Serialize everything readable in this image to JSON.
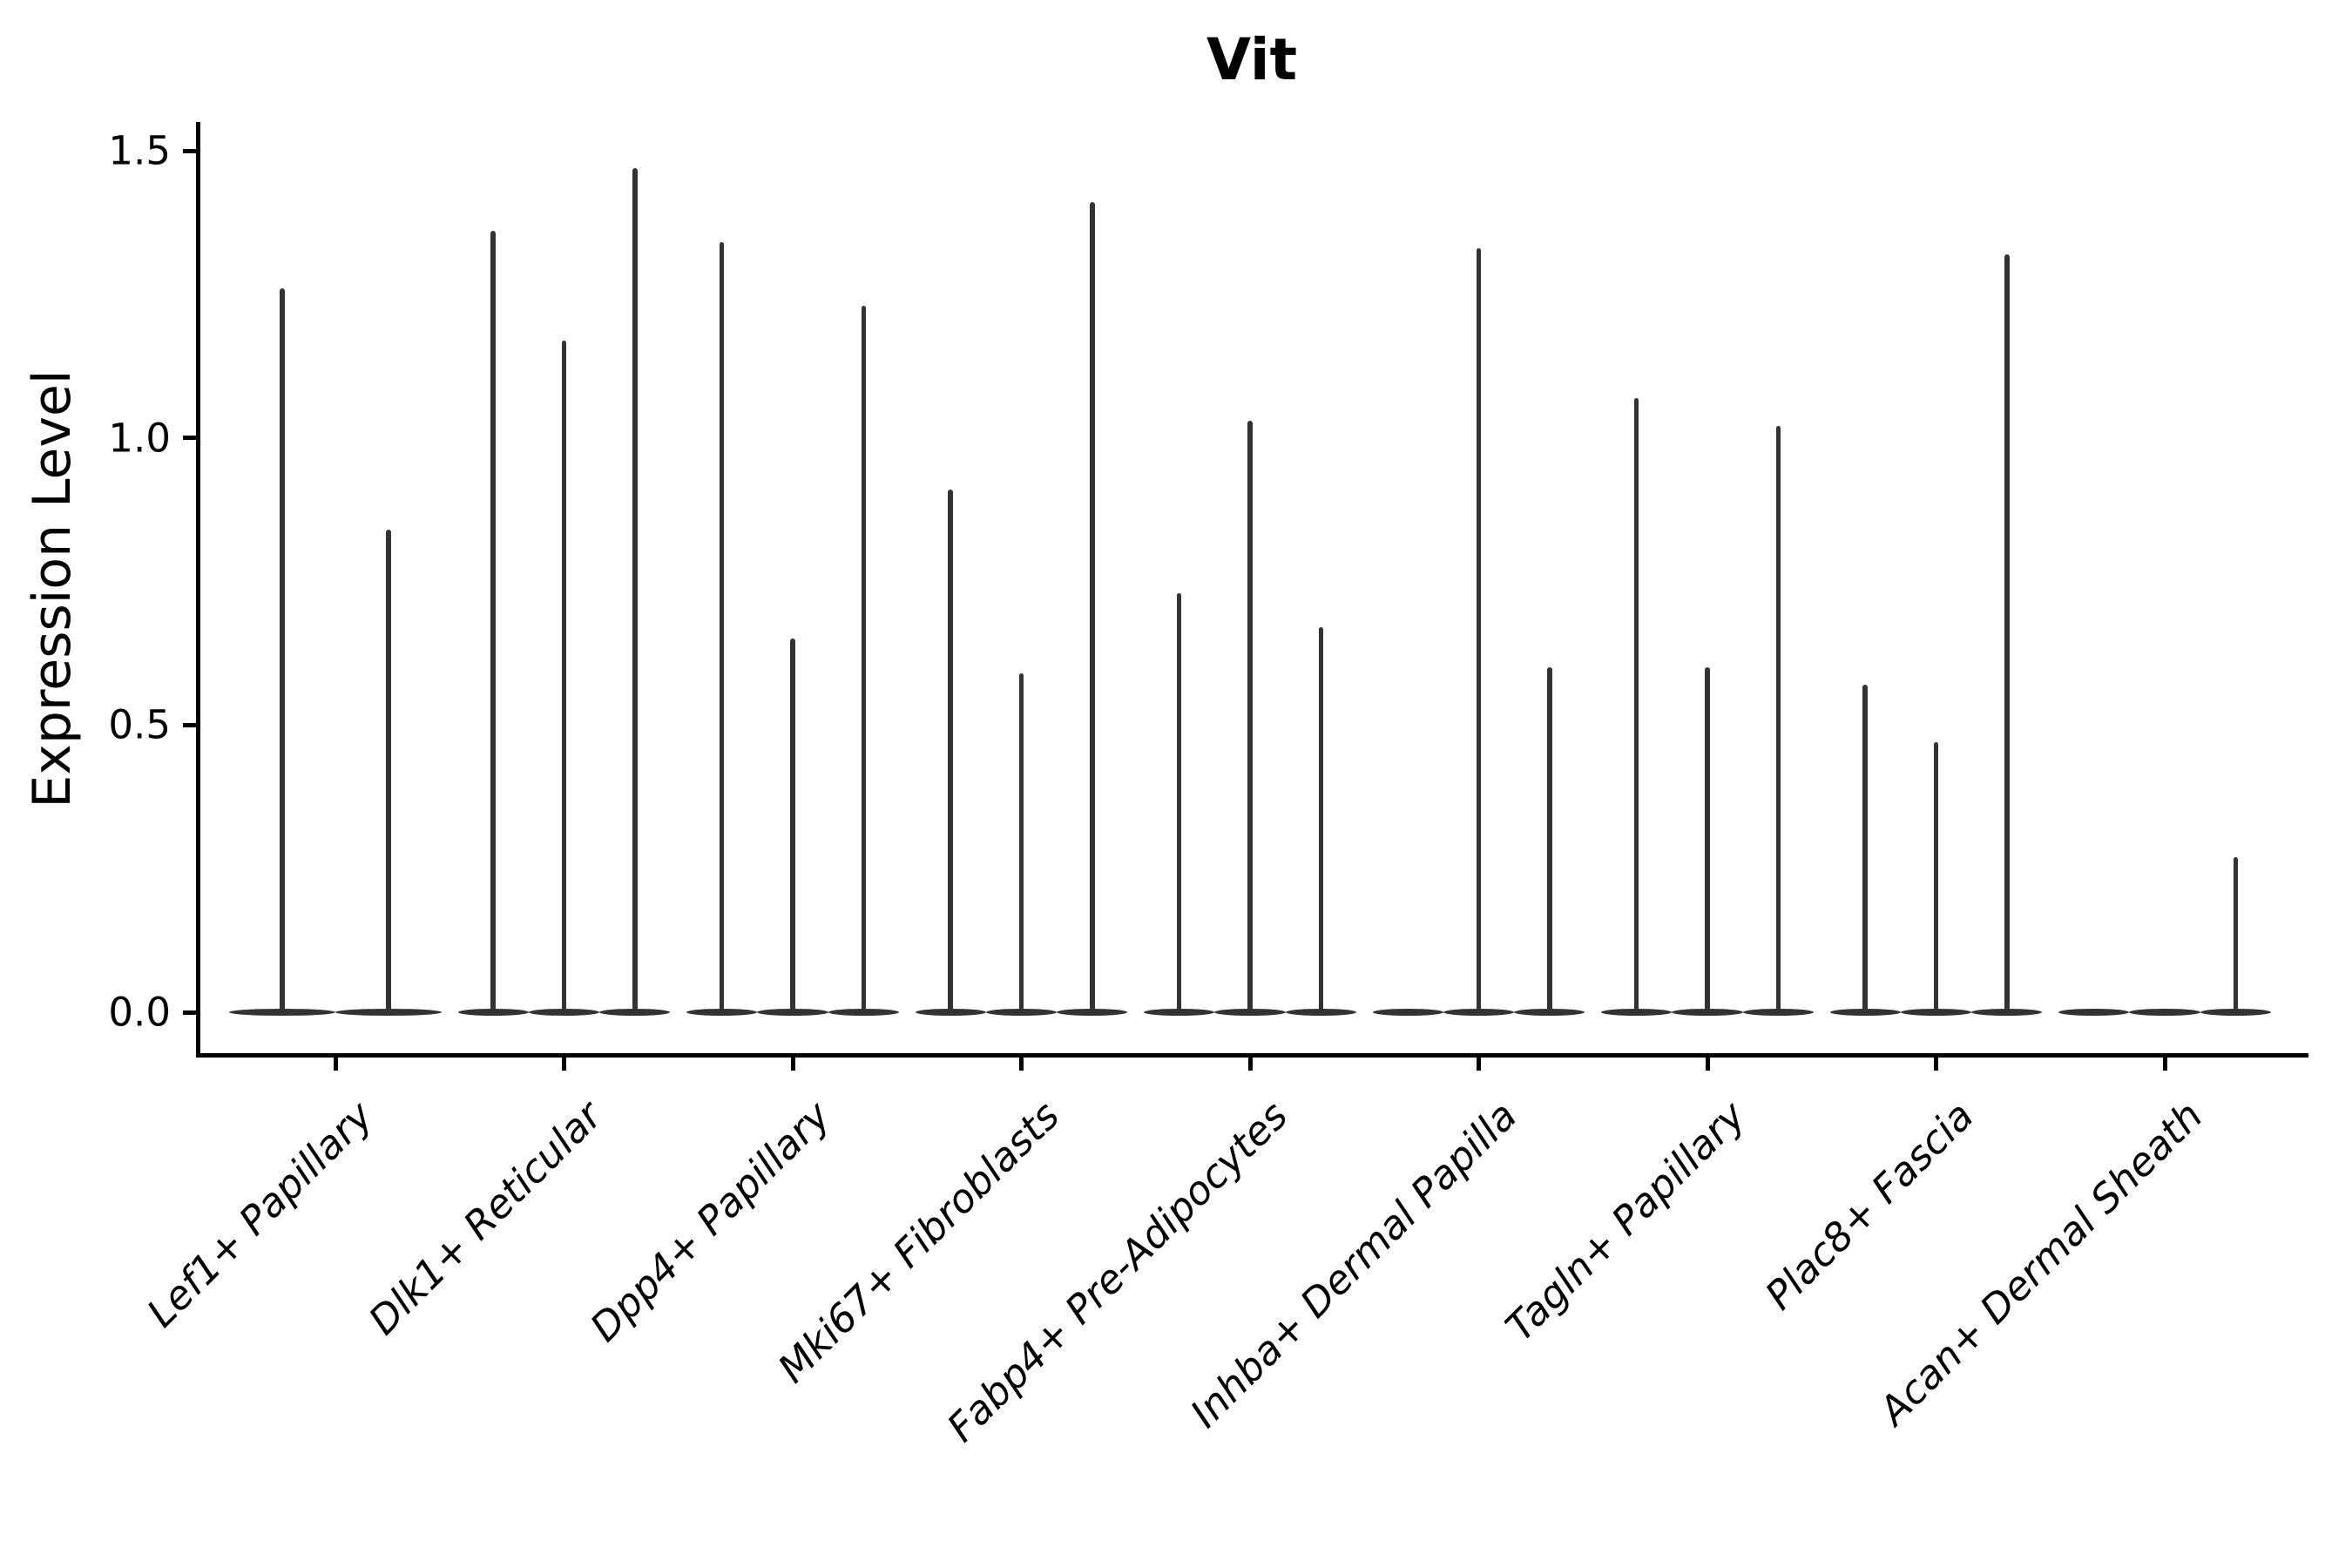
{
  "chart_data": {
    "type": "violin",
    "title": "Vit",
    "ylabel": "Expression Level",
    "xlabel": "",
    "ylim": [
      0,
      1.5
    ],
    "yticks": [
      0.0,
      0.5,
      1.0,
      1.5
    ],
    "ytick_labels": [
      "0.0",
      "0.5",
      "1.0",
      "1.5"
    ],
    "grid": false,
    "legend": "none",
    "categories": [
      "Lef1+ Papillary",
      "Dlk1+ Reticular",
      "Dpp4+ Papillary",
      "Mki67+ Fibroblasts",
      "Fabp4+ Pre-Adipocytes",
      "Inhba+ Dermal Papilla",
      "Tagln+ Papillary",
      "Plac8+ Fascia",
      "Acan+ Dermal Sheath"
    ],
    "groups": [
      {
        "category": "Lef1+ Papillary",
        "violin_maxima": [
          1.26,
          0.84
        ]
      },
      {
        "category": "Dlk1+ Reticular",
        "violin_maxima": [
          1.36,
          1.17,
          1.47
        ]
      },
      {
        "category": "Dpp4+ Papillary",
        "violin_maxima": [
          1.34,
          0.65,
          1.23
        ]
      },
      {
        "category": "Mki67+ Fibroblasts",
        "violin_maxima": [
          0.91,
          0.59,
          1.41
        ]
      },
      {
        "category": "Fabp4+ Pre-Adipocytes",
        "violin_maxima": [
          0.73,
          1.03,
          0.67
        ]
      },
      {
        "category": "Inhba+ Dermal Papilla",
        "violin_maxima": [
          0.0,
          1.33,
          0.6
        ]
      },
      {
        "category": "Tagln+ Papillary",
        "violin_maxima": [
          1.07,
          0.6,
          1.02
        ]
      },
      {
        "category": "Plac8+ Fascia",
        "violin_maxima": [
          0.57,
          0.47,
          1.32
        ]
      },
      {
        "category": "Acan+ Dermal Sheath",
        "violin_maxima": [
          0.0,
          0.0,
          0.27
        ]
      }
    ],
    "note": "Each cluster shows thin violins concentrated at 0 expression with narrow spikes reaching the listed maximum expression value; maxima of 0 are flat baseline violins."
  },
  "colors": {
    "violin": "#333333",
    "axis": "#000000",
    "text": "#000000",
    "background": "#ffffff"
  }
}
